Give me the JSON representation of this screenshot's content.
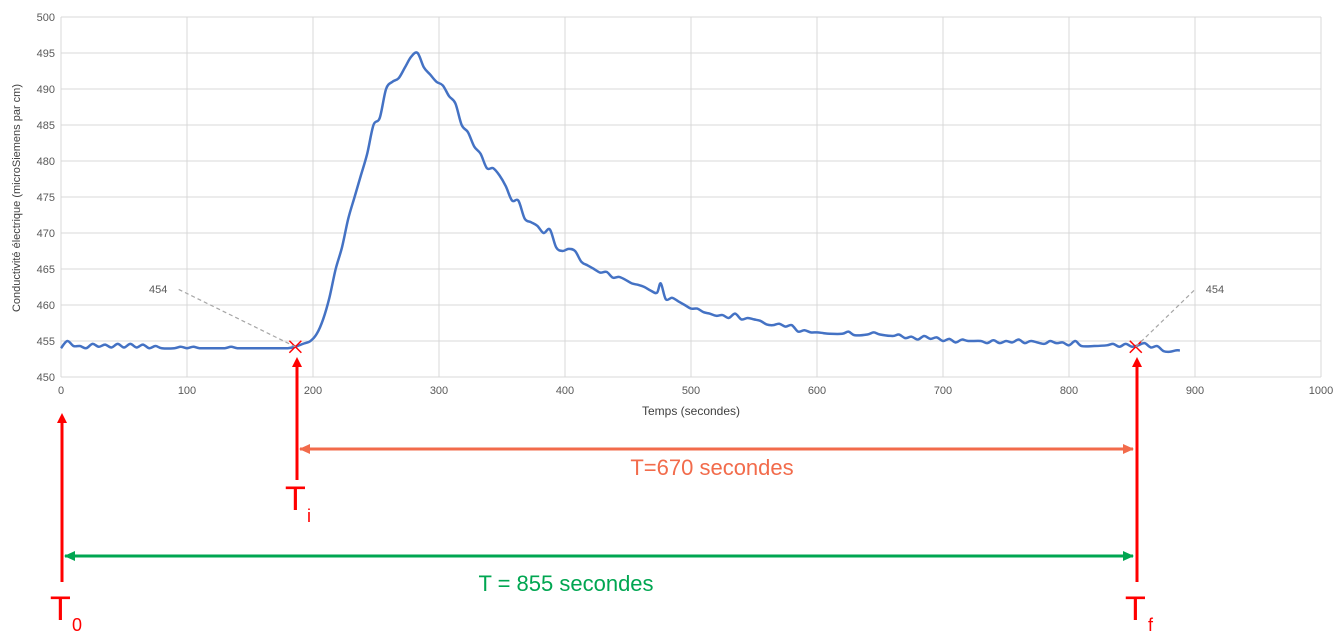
{
  "chart_data": {
    "type": "line",
    "title": "",
    "xlabel": "Temps (secondes)",
    "ylabel": "Conductivité électrique (microSiemens par cm)",
    "xlim": [
      0,
      1000
    ],
    "ylim": [
      450,
      500
    ],
    "x_ticks": [
      0,
      100,
      200,
      300,
      400,
      500,
      600,
      700,
      800,
      900,
      1000
    ],
    "y_ticks": [
      450,
      455,
      460,
      465,
      470,
      475,
      480,
      485,
      490,
      495,
      500
    ],
    "grid": true,
    "legend": "none",
    "series": [
      {
        "color": "#4472c4",
        "points": [
          [
            0,
            454
          ],
          [
            5,
            455
          ],
          [
            10,
            454.3
          ],
          [
            15,
            454.3
          ],
          [
            20,
            454
          ],
          [
            25,
            454.6
          ],
          [
            30,
            454.2
          ],
          [
            35,
            454.5
          ],
          [
            40,
            454.1
          ],
          [
            45,
            454.6
          ],
          [
            50,
            454.1
          ],
          [
            55,
            454.6
          ],
          [
            60,
            454.1
          ],
          [
            65,
            454.5
          ],
          [
            70,
            454
          ],
          [
            75,
            454.3
          ],
          [
            80,
            454
          ],
          [
            90,
            454
          ],
          [
            95,
            454.2
          ],
          [
            100,
            454
          ],
          [
            105,
            454.2
          ],
          [
            110,
            454
          ],
          [
            120,
            454
          ],
          [
            130,
            454
          ],
          [
            135,
            454.2
          ],
          [
            140,
            454
          ],
          [
            150,
            454
          ],
          [
            160,
            454
          ],
          [
            170,
            454
          ],
          [
            180,
            454
          ],
          [
            186,
            454.2
          ],
          [
            192,
            454.6
          ],
          [
            198,
            455
          ],
          [
            203,
            456
          ],
          [
            208,
            458
          ],
          [
            213,
            461
          ],
          [
            218,
            465
          ],
          [
            223,
            468
          ],
          [
            228,
            472
          ],
          [
            233,
            475
          ],
          [
            238,
            478
          ],
          [
            243,
            481
          ],
          [
            248,
            485
          ],
          [
            253,
            486
          ],
          [
            258,
            490
          ],
          [
            263,
            491
          ],
          [
            268,
            491.5
          ],
          [
            273,
            493
          ],
          [
            278,
            494.5
          ],
          [
            283,
            495
          ],
          [
            288,
            493
          ],
          [
            293,
            492
          ],
          [
            298,
            491
          ],
          [
            303,
            490.5
          ],
          [
            308,
            489
          ],
          [
            313,
            488
          ],
          [
            318,
            485
          ],
          [
            323,
            484
          ],
          [
            328,
            482
          ],
          [
            333,
            481
          ],
          [
            338,
            479
          ],
          [
            343,
            479
          ],
          [
            348,
            478
          ],
          [
            353,
            476.5
          ],
          [
            358,
            474.5
          ],
          [
            363,
            474.5
          ],
          [
            368,
            472
          ],
          [
            373,
            471.5
          ],
          [
            378,
            471
          ],
          [
            383,
            470
          ],
          [
            388,
            470.5
          ],
          [
            393,
            468
          ],
          [
            398,
            467.5
          ],
          [
            403,
            467.8
          ],
          [
            408,
            467.5
          ],
          [
            413,
            466
          ],
          [
            418,
            465.5
          ],
          [
            423,
            465
          ],
          [
            428,
            464.5
          ],
          [
            433,
            464.6
          ],
          [
            438,
            463.8
          ],
          [
            443,
            463.9
          ],
          [
            448,
            463.5
          ],
          [
            453,
            463
          ],
          [
            458,
            462.8
          ],
          [
            463,
            462.5
          ],
          [
            468,
            462
          ],
          [
            473,
            461.7
          ],
          [
            476,
            463
          ],
          [
            480,
            460.8
          ],
          [
            485,
            461
          ],
          [
            490,
            460.5
          ],
          [
            495,
            460
          ],
          [
            500,
            459.5
          ],
          [
            505,
            459.5
          ],
          [
            510,
            459
          ],
          [
            515,
            458.8
          ],
          [
            520,
            458.5
          ],
          [
            525,
            458.6
          ],
          [
            530,
            458.2
          ],
          [
            535,
            458.8
          ],
          [
            540,
            458
          ],
          [
            545,
            458.2
          ],
          [
            550,
            458
          ],
          [
            555,
            457.8
          ],
          [
            560,
            457.3
          ],
          [
            565,
            457.2
          ],
          [
            570,
            457.4
          ],
          [
            575,
            457
          ],
          [
            580,
            457.2
          ],
          [
            585,
            456.3
          ],
          [
            590,
            456.5
          ],
          [
            595,
            456.2
          ],
          [
            600,
            456.2
          ],
          [
            605,
            456.1
          ],
          [
            610,
            456
          ],
          [
            620,
            456
          ],
          [
            625,
            456.3
          ],
          [
            630,
            455.8
          ],
          [
            640,
            455.9
          ],
          [
            645,
            456.2
          ],
          [
            650,
            455.9
          ],
          [
            660,
            455.7
          ],
          [
            665,
            455.9
          ],
          [
            670,
            455.4
          ],
          [
            675,
            455.6
          ],
          [
            680,
            455.2
          ],
          [
            685,
            455.7
          ],
          [
            690,
            455.3
          ],
          [
            695,
            455.5
          ],
          [
            700,
            455
          ],
          [
            705,
            455.3
          ],
          [
            710,
            454.8
          ],
          [
            715,
            455.2
          ],
          [
            720,
            455
          ],
          [
            730,
            455
          ],
          [
            735,
            454.7
          ],
          [
            740,
            455.1
          ],
          [
            745,
            454.7
          ],
          [
            750,
            455
          ],
          [
            755,
            454.8
          ],
          [
            760,
            455.2
          ],
          [
            765,
            454.7
          ],
          [
            770,
            455
          ],
          [
            780,
            454.6
          ],
          [
            785,
            455
          ],
          [
            790,
            454.7
          ],
          [
            795,
            454.8
          ],
          [
            800,
            454.4
          ],
          [
            805,
            455
          ],
          [
            810,
            454.3
          ],
          [
            820,
            454.3
          ],
          [
            830,
            454.4
          ],
          [
            835,
            454.6
          ],
          [
            840,
            454.2
          ],
          [
            845,
            454.6
          ],
          [
            850,
            454.2
          ],
          [
            855,
            454.4
          ],
          [
            860,
            454.7
          ],
          [
            865,
            454.1
          ],
          [
            870,
            454.3
          ],
          [
            875,
            453.6
          ],
          [
            880,
            453.5
          ],
          [
            885,
            453.7
          ],
          [
            888,
            453.7
          ]
        ]
      }
    ],
    "markers": [
      {
        "x": 186,
        "y": 454.2,
        "label": "454"
      },
      {
        "x": 853,
        "y": 454.2,
        "label": "454"
      }
    ]
  },
  "annotations": {
    "t0_label": "T",
    "t0_sub": "0",
    "ti_label": "T",
    "ti_sub": "i",
    "tf_label": "T",
    "tf_sub": "f",
    "orange_text": "T=670 secondes",
    "green_text": "T = 855 secondes",
    "colors": {
      "red": "#ff0000",
      "orange": "#f26b4b",
      "green": "#00a651",
      "line": "#4472c4",
      "grid": "#d9d9d9"
    }
  }
}
